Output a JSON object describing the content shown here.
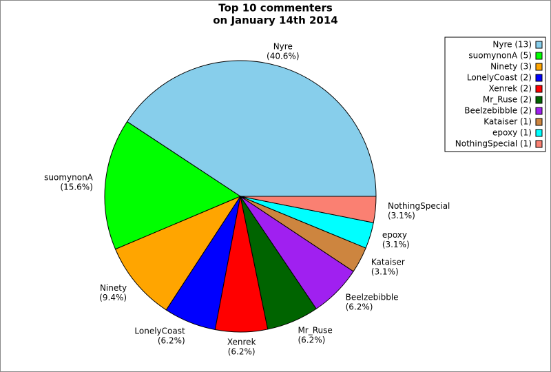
{
  "chart_data": {
    "type": "pie",
    "title": [
      "Top 10 commenters",
      "on January 14th 2014"
    ],
    "categories": [
      "Nyre",
      "suomynonA",
      "Ninety",
      "LonelyCoast",
      "Xenrek",
      "Mr_Ruse",
      "Beelzebibble",
      "Kataiser",
      "epoxy",
      "NothingSpecial"
    ],
    "values": [
      40.6,
      15.6,
      9.4,
      6.2,
      6.2,
      6.2,
      6.2,
      3.1,
      3.1,
      3.1
    ],
    "value_labels": [
      "(40.6%)",
      "(15.6%)",
      "(9.4%)",
      "(6.2%)",
      "(6.2%)",
      "(6.2%)",
      "(6.2%)",
      "(3.1%)",
      "(3.1%)",
      "(3.1%)"
    ],
    "colors": [
      "#87ceeb",
      "#00ff00",
      "#ffa500",
      "#0000ff",
      "#ff0000",
      "#006400",
      "#a020f0",
      "#cd853f",
      "#00ffff",
      "#fa8072"
    ],
    "legend_labels": [
      "Nyre (13)",
      "suomynonA (5)",
      "Ninety (3)",
      "LonelyCoast (2)",
      "Xenrek (2)",
      "Mr_Ruse (2)",
      "Beelzebibble (2)",
      "Kataiser (1)",
      "epoxy (1)",
      "NothingSpecial (1)"
    ],
    "legend": "upper right"
  }
}
